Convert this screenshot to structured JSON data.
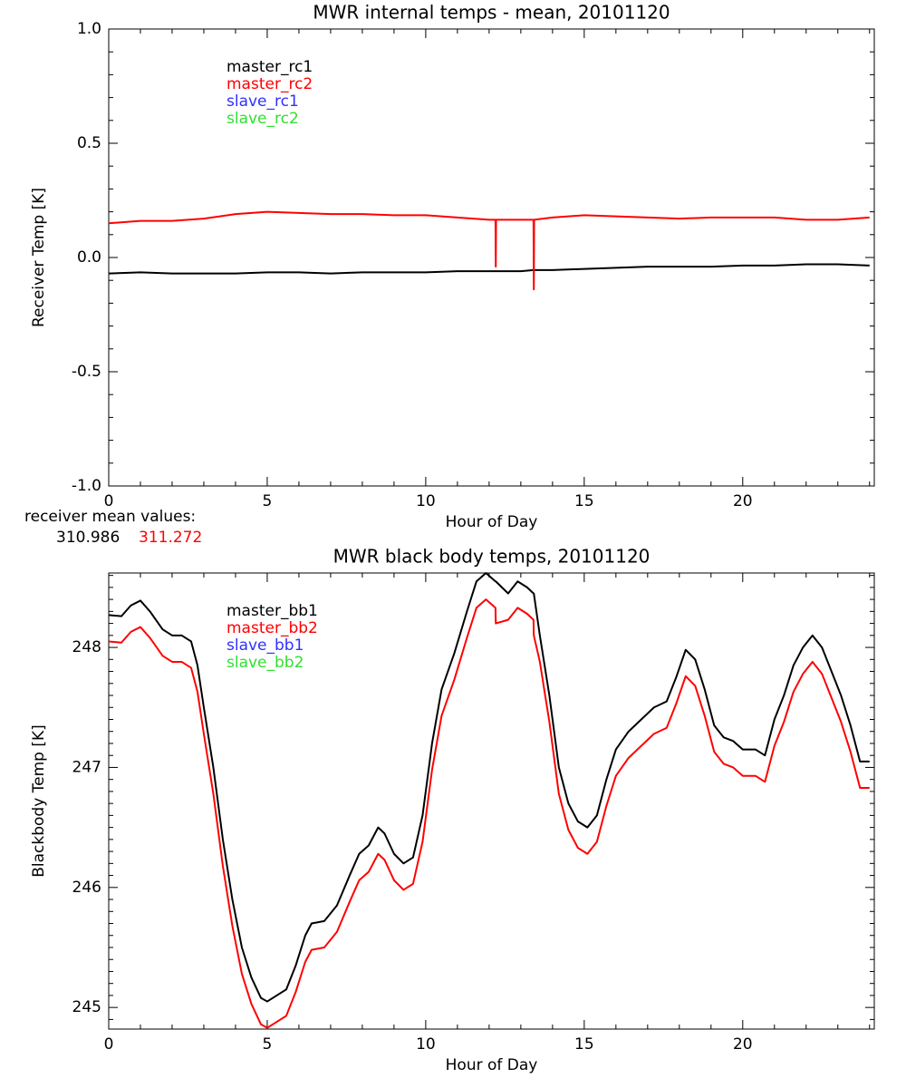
{
  "chart_data": [
    {
      "type": "line",
      "title": "MWR internal temps - mean, 20101120",
      "x_label": "Hour of Day",
      "y_label": "Receiver Temp [K]",
      "xlim": [
        0,
        24.15
      ],
      "xticks": [
        0,
        5,
        10,
        15,
        20
      ],
      "x_minor": 5,
      "ylim": [
        -1,
        1
      ],
      "yticks": [
        {
          "value": -1,
          "label": "-1.0"
        },
        {
          "value": -0.5,
          "label": "-0.5"
        },
        {
          "value": 0,
          "label": "0.0"
        },
        {
          "value": 0.5,
          "label": "0.5"
        },
        {
          "value": 1,
          "label": "1.0"
        }
      ],
      "y_minor": 5,
      "legend": "upper left",
      "x": [
        0,
        1,
        2,
        3,
        4,
        5,
        6,
        7,
        8,
        9,
        10,
        11,
        12,
        12.2,
        12.21,
        12.22,
        13,
        13.4,
        13.41,
        13.42,
        14,
        15,
        16,
        17,
        18,
        19,
        20,
        21,
        22,
        23,
        24
      ],
      "series": [
        {
          "name": "master_rc1",
          "color": "#000000",
          "values": [
            -0.07,
            -0.065,
            -0.07,
            -0.07,
            -0.07,
            -0.065,
            -0.065,
            -0.07,
            -0.065,
            -0.065,
            -0.065,
            -0.06,
            -0.06,
            -0.06,
            -0.06,
            -0.06,
            -0.06,
            -0.055,
            -0.055,
            -0.055,
            -0.055,
            -0.05,
            -0.045,
            -0.04,
            -0.04,
            -0.04,
            -0.035,
            -0.035,
            -0.03,
            -0.03,
            -0.035
          ]
        },
        {
          "name": "master_rc2",
          "color": "#ff0000",
          "values": [
            0.15,
            0.16,
            0.16,
            0.17,
            0.19,
            0.2,
            0.195,
            0.19,
            0.19,
            0.185,
            0.185,
            0.175,
            0.165,
            0.165,
            -0.04,
            0.165,
            0.165,
            0.165,
            -0.14,
            0.165,
            0.175,
            0.185,
            0.18,
            0.175,
            0.17,
            0.175,
            0.175,
            0.175,
            0.165,
            0.165,
            0.175
          ]
        },
        {
          "name": "slave_rc1",
          "color": "#3030ff",
          "values": [
            null,
            null,
            null,
            null,
            null,
            null,
            null,
            null,
            null,
            null,
            null,
            null,
            null,
            null,
            null,
            null,
            null,
            null,
            null,
            null,
            null,
            null,
            null,
            null,
            null,
            null,
            null,
            null,
            null,
            null,
            null
          ]
        },
        {
          "name": "slave_rc2",
          "color": "#30e030",
          "values": [
            null,
            null,
            null,
            null,
            null,
            null,
            null,
            null,
            null,
            null,
            null,
            null,
            null,
            null,
            null,
            null,
            null,
            null,
            null,
            null,
            null,
            null,
            null,
            null,
            null,
            null,
            null,
            null,
            null,
            null,
            null
          ]
        }
      ],
      "annotations": [
        {
          "text": "receiver mean values:",
          "color": "#000000"
        },
        {
          "text": "310.986",
          "color": "#000000"
        },
        {
          "text": "311.272",
          "color": "#ff0000"
        }
      ]
    },
    {
      "type": "line",
      "title": "MWR black body temps, 20101120",
      "x_label": "Hour of Day",
      "y_label": "Blackbody Temp [K]",
      "xlim": [
        0,
        24.15
      ],
      "xticks": [
        0,
        5,
        10,
        15,
        20
      ],
      "x_minor": 5,
      "ylim": [
        244.82,
        248.62
      ],
      "yticks": [
        245,
        246,
        247,
        248
      ],
      "y_minor": 10,
      "legend": "upper left",
      "x": [
        0,
        0.4,
        0.7,
        1.0,
        1.3,
        1.7,
        2.0,
        2.3,
        2.6,
        2.8,
        3.0,
        3.3,
        3.6,
        3.9,
        4.2,
        4.5,
        4.8,
        5.0,
        5.3,
        5.6,
        5.9,
        6.2,
        6.4,
        6.8,
        7.2,
        7.6,
        7.9,
        8.2,
        8.5,
        8.7,
        9.0,
        9.3,
        9.6,
        9.9,
        10.2,
        10.5,
        10.9,
        11.3,
        11.6,
        11.9,
        12.2,
        12.21,
        12.6,
        12.9,
        13.2,
        13.4,
        13.41,
        13.6,
        13.9,
        14.2,
        14.5,
        14.8,
        15.1,
        15.4,
        15.7,
        16.0,
        16.4,
        16.8,
        17.2,
        17.6,
        17.9,
        18.2,
        18.5,
        18.8,
        19.1,
        19.4,
        19.7,
        20.0,
        20.4,
        20.7,
        21.0,
        21.3,
        21.6,
        21.9,
        22.2,
        22.5,
        22.8,
        23.1,
        23.4,
        23.7,
        24.0
      ],
      "series": [
        {
          "name": "master_bb1",
          "color": "#000000",
          "values": [
            248.27,
            248.26,
            248.35,
            248.39,
            248.3,
            248.15,
            248.1,
            248.1,
            248.05,
            247.85,
            247.5,
            247.0,
            246.4,
            245.9,
            245.5,
            245.25,
            245.08,
            245.05,
            245.1,
            245.15,
            245.35,
            245.6,
            245.7,
            245.72,
            245.85,
            246.1,
            246.28,
            246.35,
            246.5,
            246.45,
            246.28,
            246.2,
            246.25,
            246.6,
            247.2,
            247.65,
            247.95,
            248.3,
            248.55,
            248.62,
            248.55,
            248.55,
            248.45,
            248.55,
            248.5,
            248.45,
            248.45,
            248.1,
            247.6,
            247.0,
            246.7,
            246.55,
            246.5,
            246.6,
            246.9,
            247.15,
            247.3,
            247.4,
            247.5,
            247.55,
            247.75,
            247.98,
            247.9,
            247.65,
            247.35,
            247.25,
            247.22,
            247.15,
            247.15,
            247.1,
            247.4,
            247.6,
            247.85,
            248.0,
            248.1,
            248.0,
            247.8,
            247.6,
            247.35,
            247.05,
            247.05
          ]
        },
        {
          "name": "master_bb2",
          "color": "#ff0000",
          "values": [
            248.05,
            248.04,
            248.13,
            248.17,
            248.08,
            247.93,
            247.88,
            247.88,
            247.83,
            247.63,
            247.28,
            246.78,
            246.18,
            245.68,
            245.28,
            245.03,
            244.86,
            244.83,
            244.88,
            244.93,
            245.13,
            245.38,
            245.48,
            245.5,
            245.63,
            245.88,
            246.06,
            246.13,
            246.28,
            246.23,
            246.06,
            245.98,
            246.03,
            246.38,
            246.98,
            247.43,
            247.73,
            248.08,
            248.33,
            248.4,
            248.33,
            248.2,
            248.23,
            248.33,
            248.28,
            248.23,
            248.1,
            247.88,
            247.38,
            246.78,
            246.48,
            246.33,
            246.28,
            246.38,
            246.68,
            246.93,
            247.08,
            247.18,
            247.28,
            247.33,
            247.53,
            247.76,
            247.68,
            247.43,
            247.13,
            247.03,
            247.0,
            246.93,
            246.93,
            246.88,
            247.18,
            247.38,
            247.63,
            247.78,
            247.88,
            247.78,
            247.58,
            247.38,
            247.13,
            246.83,
            246.83
          ]
        },
        {
          "name": "slave_bb1",
          "color": "#3030ff",
          "values": [
            null,
            null,
            null,
            null,
            null,
            null,
            null,
            null,
            null,
            null,
            null,
            null,
            null,
            null,
            null,
            null,
            null,
            null,
            null,
            null,
            null,
            null,
            null,
            null,
            null,
            null,
            null,
            null,
            null,
            null,
            null,
            null,
            null,
            null,
            null,
            null,
            null,
            null,
            null,
            null,
            null,
            null,
            null,
            null,
            null,
            null,
            null,
            null,
            null,
            null,
            null,
            null,
            null,
            null,
            null,
            null,
            null,
            null,
            null,
            null,
            null,
            null,
            null,
            null,
            null,
            null,
            null,
            null,
            null,
            null,
            null,
            null,
            null,
            null,
            null,
            null,
            null,
            null,
            null,
            null,
            null
          ]
        },
        {
          "name": "slave_bb2",
          "color": "#30e030",
          "values": [
            null,
            null,
            null,
            null,
            null,
            null,
            null,
            null,
            null,
            null,
            null,
            null,
            null,
            null,
            null,
            null,
            null,
            null,
            null,
            null,
            null,
            null,
            null,
            null,
            null,
            null,
            null,
            null,
            null,
            null,
            null,
            null,
            null,
            null,
            null,
            null,
            null,
            null,
            null,
            null,
            null,
            null,
            null,
            null,
            null,
            null,
            null,
            null,
            null,
            null,
            null,
            null,
            null,
            null,
            null,
            null,
            null,
            null,
            null,
            null,
            null,
            null,
            null,
            null,
            null,
            null,
            null,
            null,
            null,
            null,
            null,
            null,
            null,
            null,
            null,
            null,
            null,
            null,
            null,
            null,
            null
          ]
        }
      ]
    }
  ]
}
